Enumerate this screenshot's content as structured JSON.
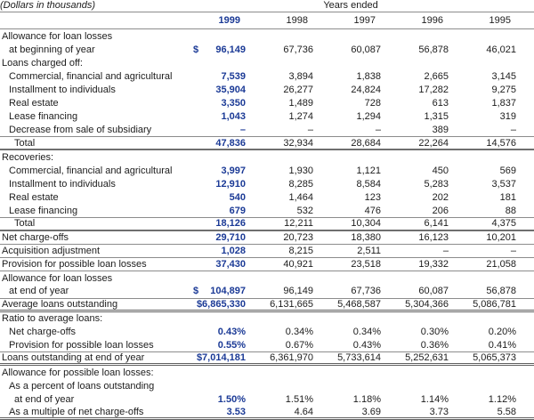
{
  "colors": {
    "accent_blue": "#1b3a96",
    "text": "#1c1c1c",
    "rule_gray": "#8c8c8c"
  },
  "table": {
    "note": "(Dollars in thousands)",
    "years_ended_label": "Years ended",
    "columns": [
      "1999",
      "1998",
      "1997",
      "1996",
      "1995"
    ],
    "rows": [
      {
        "label": "Allowance for loan losses",
        "indent": 0,
        "values": null,
        "rule": "none"
      },
      {
        "label": "at beginning of year",
        "indent": 1,
        "dollar": "separate",
        "values": [
          "96,149",
          "67,736",
          "60,087",
          "56,878",
          "46,021"
        ],
        "rule": "none"
      },
      {
        "label": "Loans charged off:",
        "indent": 0,
        "values": null,
        "rule": "none"
      },
      {
        "label": "Commercial, financial and agricultural",
        "indent": 1,
        "values": [
          "7,539",
          "3,894",
          "1,838",
          "2,665",
          "3,145"
        ],
        "rule": "none"
      },
      {
        "label": "Installment to individuals",
        "indent": 1,
        "values": [
          "35,904",
          "26,277",
          "24,824",
          "17,282",
          "9,275"
        ],
        "rule": "none"
      },
      {
        "label": "Real estate",
        "indent": 1,
        "values": [
          "3,350",
          "1,489",
          "728",
          "613",
          "1,837"
        ],
        "rule": "none"
      },
      {
        "label": "Lease financing",
        "indent": 1,
        "values": [
          "1,043",
          "1,274",
          "1,294",
          "1,315",
          "319"
        ],
        "rule": "none"
      },
      {
        "label": "Decrease from sale of subsidiary",
        "indent": 1,
        "values": [
          "–",
          "–",
          "–",
          "389",
          "–"
        ],
        "rule": "thin"
      },
      {
        "label": "Total",
        "indent": 2,
        "values": [
          "47,836",
          "32,934",
          "28,684",
          "22,264",
          "14,576"
        ],
        "rule": "thick"
      },
      {
        "label": "Recoveries:",
        "indent": 0,
        "values": null,
        "rule": "none"
      },
      {
        "label": "Commercial, financial and agricultural",
        "indent": 1,
        "values": [
          "3,997",
          "1,930",
          "1,121",
          "450",
          "569"
        ],
        "rule": "none"
      },
      {
        "label": "Installment to individuals",
        "indent": 1,
        "values": [
          "12,910",
          "8,285",
          "8,584",
          "5,283",
          "3,537"
        ],
        "rule": "none"
      },
      {
        "label": "Real estate",
        "indent": 1,
        "values": [
          "540",
          "1,464",
          "123",
          "202",
          "181"
        ],
        "rule": "none"
      },
      {
        "label": "Lease financing",
        "indent": 1,
        "values": [
          "679",
          "532",
          "476",
          "206",
          "88"
        ],
        "rule": "thin"
      },
      {
        "label": "Total",
        "indent": 2,
        "values": [
          "18,126",
          "12,211",
          "10,304",
          "6,141",
          "4,375"
        ],
        "rule": "thick"
      },
      {
        "label": "Net charge-offs",
        "indent": 0,
        "values": [
          "29,710",
          "20,723",
          "18,380",
          "16,123",
          "10,201"
        ],
        "rule": "thin"
      },
      {
        "label": "Acquisition adjustment",
        "indent": 0,
        "values": [
          "1,028",
          "8,215",
          "2,511",
          "–",
          "–"
        ],
        "rule": "thin"
      },
      {
        "label": "Provision for possible loan losses",
        "indent": 0,
        "values": [
          "37,430",
          "40,921",
          "23,518",
          "19,332",
          "21,058"
        ],
        "rule": "thin"
      },
      {
        "label": "Allowance for loan losses",
        "indent": 0,
        "values": null,
        "rule": "none"
      },
      {
        "label": "at end of year",
        "indent": 1,
        "dollar": "separate",
        "values": [
          "104,897",
          "96,149",
          "67,736",
          "60,087",
          "56,878"
        ],
        "rule": "thin"
      },
      {
        "label": "Average loans outstanding",
        "indent": 0,
        "values": [
          "$6,865,330",
          "6,131,665",
          "5,468,587",
          "5,304,366",
          "5,086,781"
        ],
        "rule": "double"
      },
      {
        "label": "Ratio to average loans:",
        "indent": 0,
        "values": null,
        "rule": "none"
      },
      {
        "label": "Net charge-offs",
        "indent": 1,
        "values": [
          "0.43%",
          "0.34%",
          "0.34%",
          "0.30%",
          "0.20%"
        ],
        "rule": "none"
      },
      {
        "label": "Provision for possible loan losses",
        "indent": 1,
        "values": [
          "0.55%",
          "0.67%",
          "0.43%",
          "0.36%",
          "0.41%"
        ],
        "rule": "thin"
      },
      {
        "label": "Loans outstanding at end of year",
        "indent": 0,
        "values": [
          "$7,014,181",
          "6,361,970",
          "5,733,614",
          "5,252,631",
          "5,065,373"
        ],
        "rule": "double"
      },
      {
        "label": "Allowance for possible loan losses:",
        "indent": 0,
        "values": null,
        "rule": "none"
      },
      {
        "label": "As a percent of loans outstanding",
        "indent": 1,
        "values": null,
        "rule": "none"
      },
      {
        "label": "at end of year",
        "indent": 2,
        "values": [
          "1.50%",
          "1.51%",
          "1.18%",
          "1.14%",
          "1.12%"
        ],
        "rule": "none"
      },
      {
        "label": "As a multiple of net charge-offs",
        "indent": 1,
        "values": [
          "3.53",
          "4.64",
          "3.69",
          "3.73",
          "5.58"
        ],
        "rule": "double"
      }
    ]
  }
}
